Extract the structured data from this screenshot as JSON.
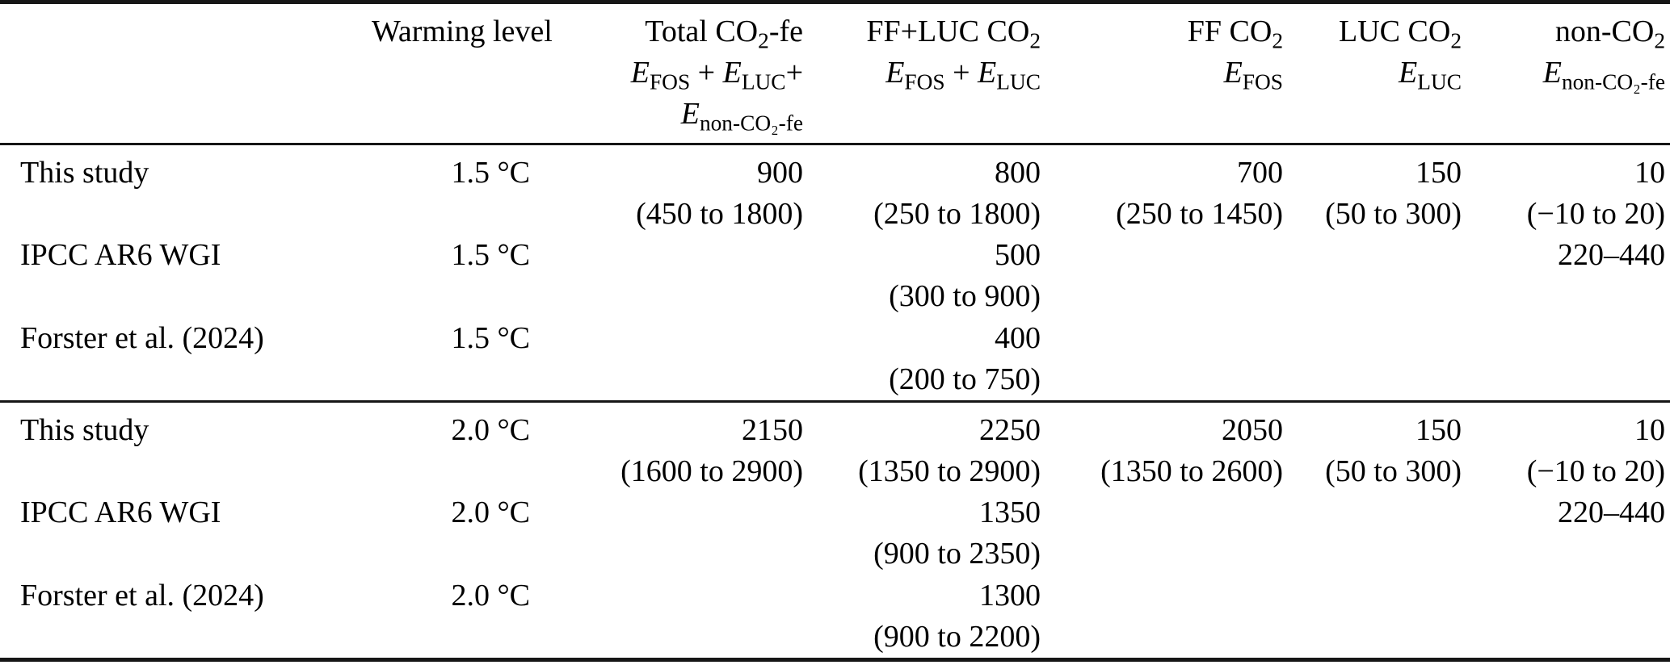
{
  "page": {
    "background": "#ffffff",
    "text_color": "#000000",
    "rule_color": "#161616"
  },
  "table": {
    "description": "Emission budget comparison table by warming level",
    "header": {
      "cells": [
        {
          "lines": [
            "",
            "",
            ""
          ]
        },
        {
          "lines": [
            "Warming level",
            "",
            ""
          ]
        },
        {
          "lines": [
            "Total CO~2~-fe",
            "*E*~FOS~ + *E*~LUC~+",
            "*E*~non-CO₂-fe~"
          ]
        },
        {
          "lines": [
            "FF+LUC CO~2~",
            "*E*~FOS~ + *E*~LUC~",
            ""
          ]
        },
        {
          "lines": [
            "FF CO~2~",
            "*E*~FOS~",
            ""
          ]
        },
        {
          "lines": [
            "LUC CO~2~",
            "*E*~LUC~",
            ""
          ]
        },
        {
          "lines": [
            "non-CO~2~",
            "*E*~non-CO₂-fe~",
            ""
          ]
        }
      ]
    },
    "sections": [
      {
        "rows": [
          {
            "study": "This study",
            "warming": "1.5 °C",
            "values": [
              {
                "v": "900",
                "r": "(450 to 1800)"
              },
              {
                "v": "800",
                "r": "(250 to 1800)"
              },
              {
                "v": "700",
                "r": "(250 to 1450)"
              },
              {
                "v": "150",
                "r": "(50 to 300)"
              },
              {
                "v": "10",
                "r": "(−10 to 20)"
              }
            ]
          },
          {
            "study": "IPCC AR6 WGI",
            "warming": "1.5 °C",
            "values": [
              {
                "v": "",
                "r": ""
              },
              {
                "v": "500",
                "r": "(300 to 900)"
              },
              {
                "v": "",
                "r": ""
              },
              {
                "v": "",
                "r": ""
              },
              {
                "v": "220–440",
                "r": ""
              }
            ]
          },
          {
            "study": "Forster et al. (2024)",
            "warming": "1.5 °C",
            "values": [
              {
                "v": "",
                "r": ""
              },
              {
                "v": "400",
                "r": "(200 to 750)"
              },
              {
                "v": "",
                "r": ""
              },
              {
                "v": "",
                "r": ""
              },
              {
                "v": "",
                "r": ""
              }
            ]
          }
        ]
      },
      {
        "rows": [
          {
            "study": "This study",
            "warming": "2.0 °C",
            "values": [
              {
                "v": "2150",
                "r": "(1600 to 2900)"
              },
              {
                "v": "2250",
                "r": "(1350 to 2900)"
              },
              {
                "v": "2050",
                "r": "(1350 to 2600)"
              },
              {
                "v": "150",
                "r": "(50 to 300)"
              },
              {
                "v": "10",
                "r": "(−10 to 20)"
              }
            ]
          },
          {
            "study": "IPCC AR6 WGI",
            "warming": "2.0 °C",
            "values": [
              {
                "v": "",
                "r": ""
              },
              {
                "v": "1350",
                "r": "(900 to 2350)"
              },
              {
                "v": "",
                "r": ""
              },
              {
                "v": "",
                "r": ""
              },
              {
                "v": "220–440",
                "r": ""
              }
            ]
          },
          {
            "study": "Forster et al. (2024)",
            "warming": "2.0 °C",
            "values": [
              {
                "v": "",
                "r": ""
              },
              {
                "v": "1300",
                "r": "(900 to 2200)"
              },
              {
                "v": "",
                "r": ""
              },
              {
                "v": "",
                "r": ""
              },
              {
                "v": "",
                "r": ""
              }
            ]
          }
        ]
      }
    ]
  }
}
